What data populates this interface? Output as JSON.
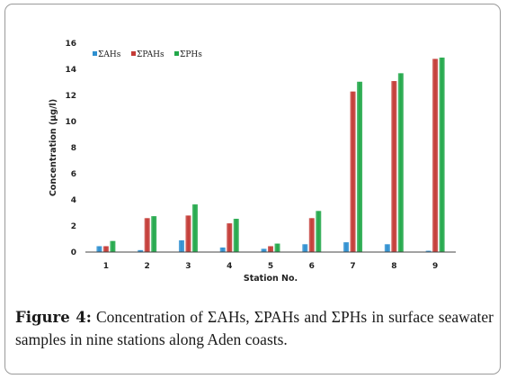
{
  "chart_data": {
    "type": "bar",
    "categories": [
      "1",
      "2",
      "3",
      "4",
      "5",
      "6",
      "7",
      "8",
      "9"
    ],
    "series": [
      {
        "name": "ΣAHs",
        "color": "#2e8fd0",
        "values": [
          0.45,
          0.15,
          0.9,
          0.35,
          0.25,
          0.6,
          0.75,
          0.6,
          0.1
        ]
      },
      {
        "name": "ΣPAHs",
        "color": "#c43b36",
        "values": [
          0.45,
          2.6,
          2.8,
          2.2,
          0.45,
          2.6,
          12.3,
          13.1,
          14.8
        ]
      },
      {
        "name": "ΣPHs",
        "color": "#22a84a",
        "values": [
          0.85,
          2.75,
          3.65,
          2.55,
          0.65,
          3.15,
          13.05,
          13.7,
          14.9
        ]
      }
    ],
    "xlabel": "Station No.",
    "ylabel": "Concentration (μg/l)",
    "ylim": [
      0,
      16
    ],
    "yticks": [
      "0",
      "2",
      "4",
      "6",
      "8",
      "10",
      "12",
      "14",
      "16"
    ],
    "legend_placement": "top-left",
    "grid": false
  },
  "caption": {
    "label": "Figure 4:",
    "text": " Concentration of ΣAHs, ΣPAHs and ΣPHs in surface seawater samples in nine stations along Aden coasts."
  }
}
